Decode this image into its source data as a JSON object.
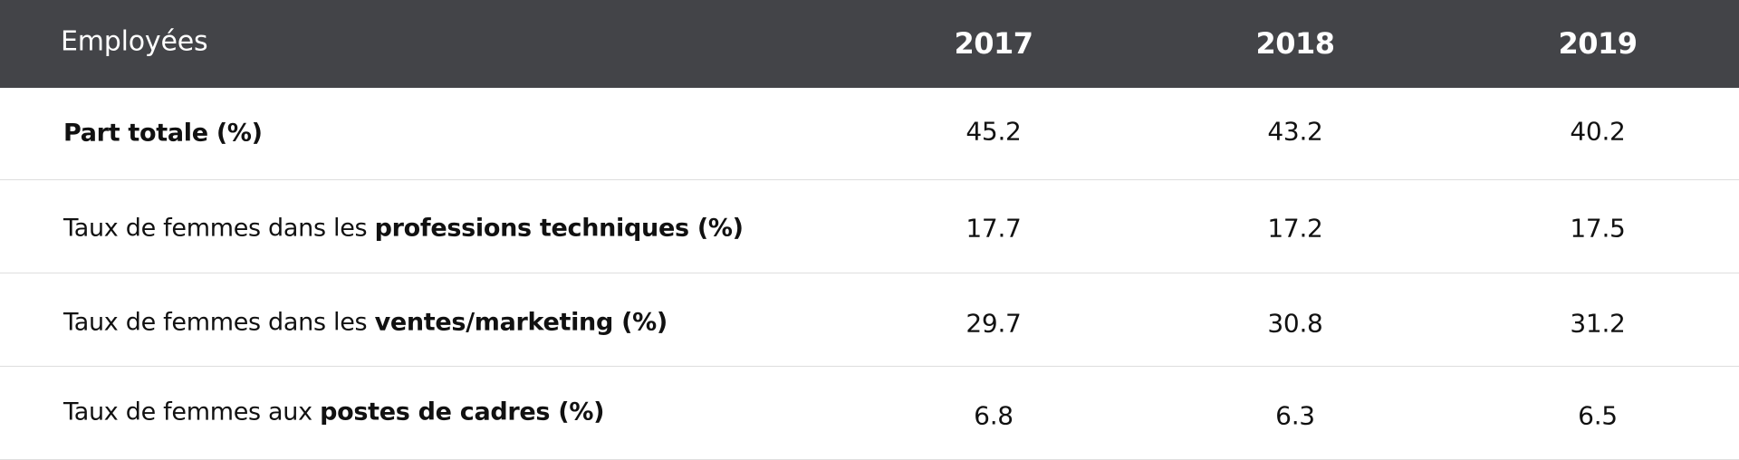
{
  "header": {
    "label": "Employées",
    "years": [
      "2017",
      "2018",
      "2019"
    ]
  },
  "rows": [
    {
      "prefix": "",
      "bold": "Part totale (%)",
      "values": [
        "45.2",
        "43.2",
        "40.2"
      ]
    },
    {
      "prefix": "Taux de femmes dans les ",
      "bold": "professions techniques (%)",
      "values": [
        "17.7",
        "17.2",
        "17.5"
      ]
    },
    {
      "prefix": "Taux de femmes dans les ",
      "bold": "ventes/marketing (%)",
      "values": [
        "29.7",
        "30.8",
        "31.2"
      ]
    },
    {
      "prefix": "Taux de femmes aux ",
      "bold": "postes de cadres (%)",
      "values": [
        "6.8",
        "6.3",
        "6.5"
      ]
    }
  ],
  "colors": {
    "header_bg": "#434448",
    "header_text": "#ffffff",
    "divider": "#dedede"
  }
}
